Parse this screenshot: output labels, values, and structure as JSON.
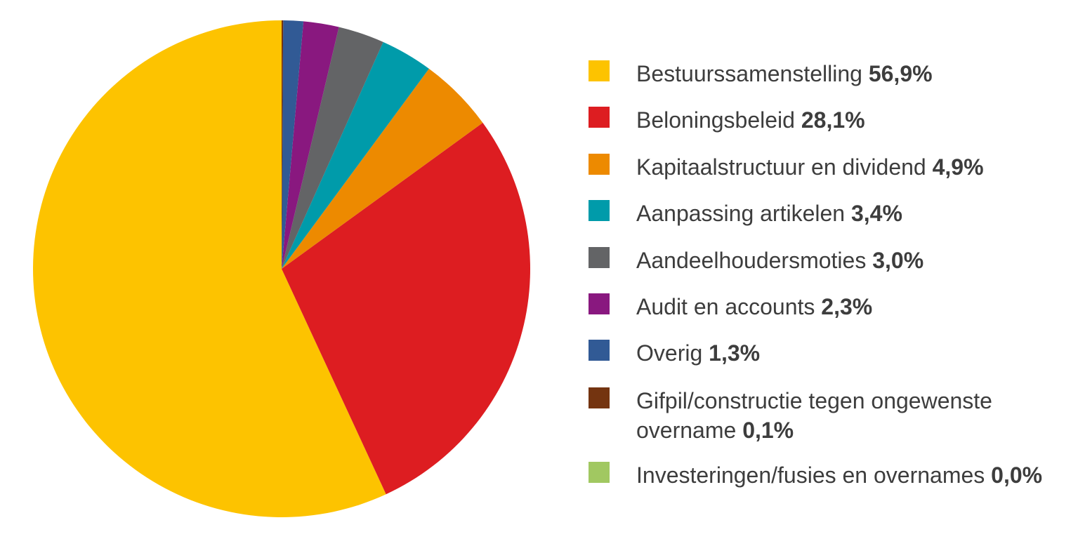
{
  "chart_data": {
    "type": "pie",
    "title": "",
    "unit": "%",
    "legend_position": "right",
    "slices": [
      {
        "label": "Bestuurssamenstelling",
        "value": 56.9,
        "value_text": "56,9%",
        "color": "#FDC300"
      },
      {
        "label": "Beloningsbeleid",
        "value": 28.1,
        "value_text": "28,1%",
        "color": "#DD1D21"
      },
      {
        "label": "Kapitaalstructuur en dividend",
        "value": 4.9,
        "value_text": "4,9%",
        "color": "#ED8A00"
      },
      {
        "label": "Aanpassing artikelen",
        "value": 3.4,
        "value_text": "3,4%",
        "color": "#009BAA"
      },
      {
        "label": "Aandeelhoudersmoties",
        "value": 3.0,
        "value_text": "3,0%",
        "color": "#636466"
      },
      {
        "label": "Audit en accounts",
        "value": 2.3,
        "value_text": "2,3%",
        "color": "#89187F"
      },
      {
        "label": "Overig",
        "value": 1.3,
        "value_text": "1,3%",
        "color": "#315A95"
      },
      {
        "label": "Gifpil/constructie tegen ongewenste overname",
        "value": 0.1,
        "value_text": "0,1%",
        "color": "#743410"
      },
      {
        "label": "Investeringen/fusies en overnames",
        "value": 0.0,
        "value_text": "0,0%",
        "color": "#A1C861"
      }
    ]
  }
}
